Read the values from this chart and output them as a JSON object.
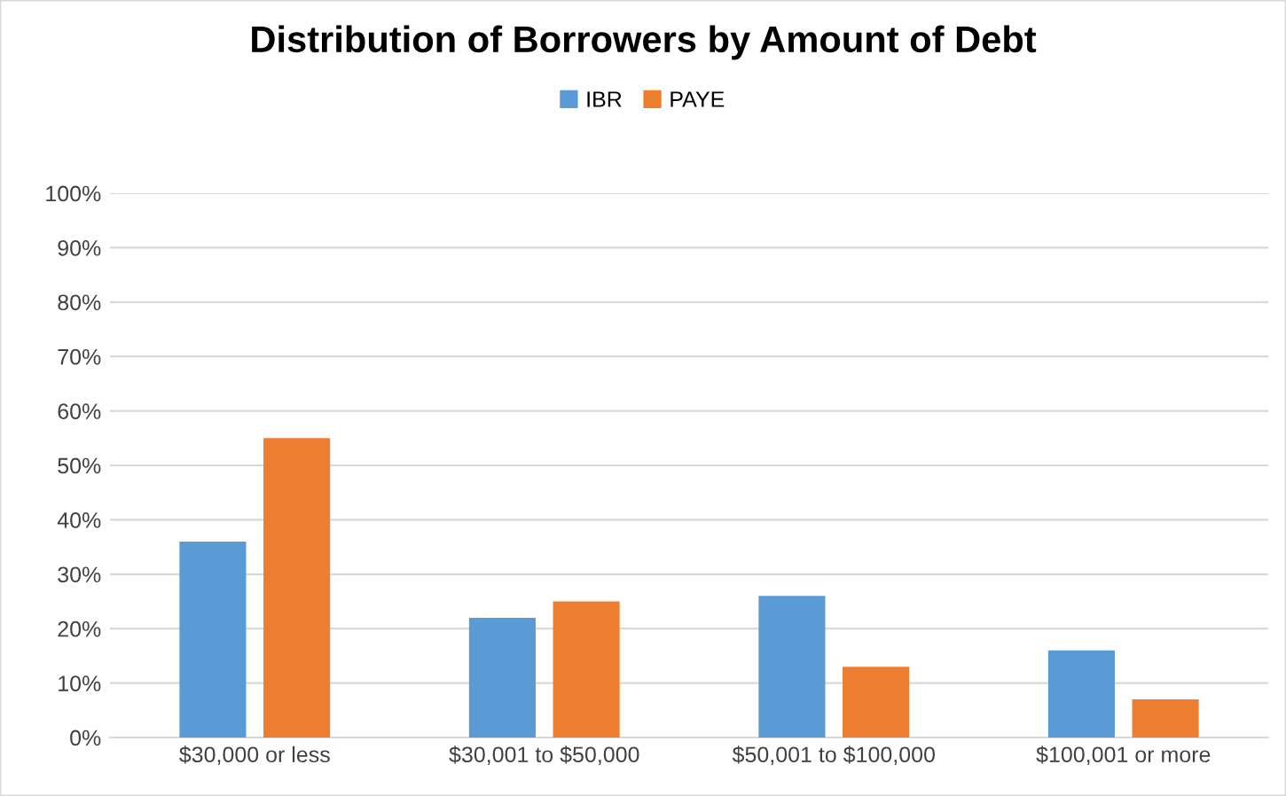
{
  "chart_data": {
    "type": "bar",
    "title": "Distribution of Borrowers by Amount of Debt",
    "categories": [
      "$30,000 or less",
      "$30,001 to $50,000",
      "$50,001 to $100,000",
      "$100,001 or more"
    ],
    "series": [
      {
        "name": "IBR",
        "color": "#5b9bd5",
        "values": [
          36,
          22,
          26,
          16
        ]
      },
      {
        "name": "PAYE",
        "color": "#ed7d31",
        "values": [
          55,
          25,
          13,
          7
        ]
      }
    ],
    "ylim": [
      0,
      100
    ],
    "yticks": [
      {
        "value": 0,
        "label": "0%"
      },
      {
        "value": 10,
        "label": "10%"
      },
      {
        "value": 20,
        "label": "20%"
      },
      {
        "value": 30,
        "label": "30%"
      },
      {
        "value": 40,
        "label": "40%"
      },
      {
        "value": 50,
        "label": "50%"
      },
      {
        "value": 60,
        "label": "60%"
      },
      {
        "value": 70,
        "label": "70%"
      },
      {
        "value": 80,
        "label": "80%"
      },
      {
        "value": 90,
        "label": "90%"
      },
      {
        "value": 100,
        "label": "100%"
      }
    ],
    "grid": "y",
    "legend": "top"
  }
}
